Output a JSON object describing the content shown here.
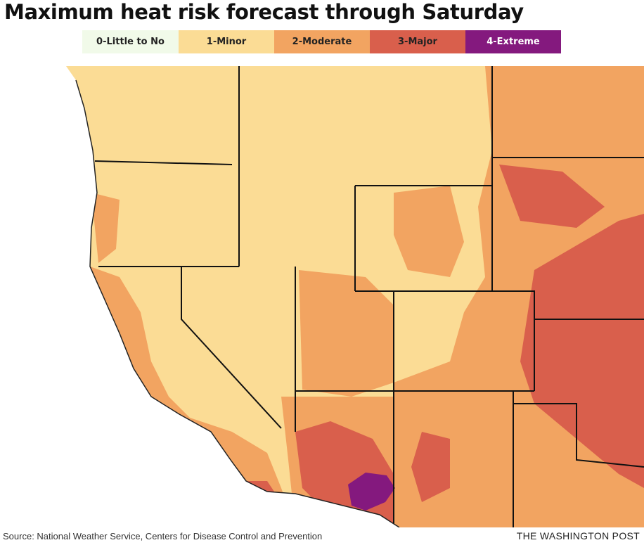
{
  "title": "Maximum heat risk forecast through Saturday",
  "legend": [
    {
      "label": "0-Little to No",
      "color": "#f1fae9",
      "text_color": "#222222"
    },
    {
      "label": "1-Minor",
      "color": "#fbdc95",
      "text_color": "#222222"
    },
    {
      "label": "2-Moderate",
      "color": "#f2a461",
      "text_color": "#222222"
    },
    {
      "label": "3-Major",
      "color": "#d95f4c",
      "text_color": "#222222"
    },
    {
      "label": "4-Extreme",
      "color": "#84197e",
      "text_color": "#ffffff"
    }
  ],
  "map": {
    "region": "Western United States",
    "ocean_color": "#ffffff",
    "border_color": "#111111"
  },
  "source": "Source: National Weather Service, Centers for Disease Control and Prevention",
  "credit": "THE WASHINGTON POST"
}
